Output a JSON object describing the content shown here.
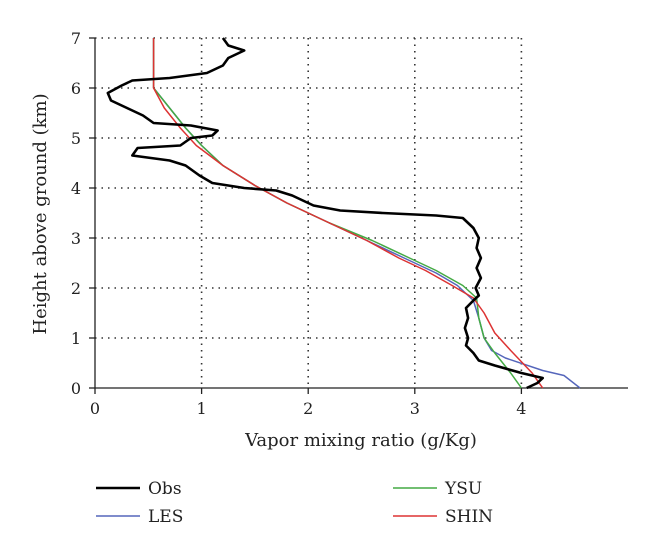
{
  "chart_data": {
    "type": "line",
    "title": "",
    "xlabel": "Vapor mixing ratio (g/Kg)",
    "ylabel": "Height above ground (km)",
    "xlim": [
      0,
      5
    ],
    "ylim": [
      0,
      7
    ],
    "xticks": [
      0,
      1,
      2,
      3,
      4
    ],
    "yticks": [
      0,
      1,
      2,
      3,
      4,
      5,
      6,
      7
    ],
    "grid": true,
    "legend_position": "bottom",
    "series": [
      {
        "name": "Obs",
        "color": "#000000",
        "points": [
          [
            4.05,
            0.0
          ],
          [
            4.15,
            0.1
          ],
          [
            4.2,
            0.2
          ],
          [
            4.0,
            0.3
          ],
          [
            3.75,
            0.45
          ],
          [
            3.6,
            0.55
          ],
          [
            3.55,
            0.7
          ],
          [
            3.48,
            0.85
          ],
          [
            3.5,
            1.0
          ],
          [
            3.47,
            1.2
          ],
          [
            3.5,
            1.4
          ],
          [
            3.48,
            1.6
          ],
          [
            3.55,
            1.75
          ],
          [
            3.6,
            1.85
          ],
          [
            3.57,
            2.0
          ],
          [
            3.62,
            2.2
          ],
          [
            3.58,
            2.4
          ],
          [
            3.62,
            2.6
          ],
          [
            3.58,
            2.8
          ],
          [
            3.6,
            3.0
          ],
          [
            3.55,
            3.2
          ],
          [
            3.45,
            3.4
          ],
          [
            3.2,
            3.45
          ],
          [
            2.7,
            3.5
          ],
          [
            2.3,
            3.55
          ],
          [
            2.05,
            3.65
          ],
          [
            1.85,
            3.85
          ],
          [
            1.7,
            3.95
          ],
          [
            1.4,
            4.0
          ],
          [
            1.1,
            4.1
          ],
          [
            0.98,
            4.25
          ],
          [
            0.85,
            4.45
          ],
          [
            0.7,
            4.55
          ],
          [
            0.35,
            4.65
          ],
          [
            0.4,
            4.8
          ],
          [
            0.8,
            4.85
          ],
          [
            0.9,
            5.0
          ],
          [
            1.1,
            5.05
          ],
          [
            1.15,
            5.15
          ],
          [
            0.9,
            5.25
          ],
          [
            0.55,
            5.3
          ],
          [
            0.45,
            5.45
          ],
          [
            0.3,
            5.6
          ],
          [
            0.15,
            5.75
          ],
          [
            0.12,
            5.9
          ],
          [
            0.25,
            6.05
          ],
          [
            0.35,
            6.15
          ],
          [
            0.7,
            6.2
          ],
          [
            1.05,
            6.3
          ],
          [
            1.2,
            6.45
          ],
          [
            1.25,
            6.6
          ],
          [
            1.4,
            6.75
          ],
          [
            1.25,
            6.85
          ],
          [
            1.2,
            7.0
          ]
        ]
      },
      {
        "name": "LES",
        "color": "#5566bb",
        "points": [
          [
            4.55,
            0.0
          ],
          [
            4.4,
            0.25
          ],
          [
            4.2,
            0.35
          ],
          [
            3.85,
            0.6
          ],
          [
            3.72,
            0.75
          ],
          [
            3.65,
            1.0
          ],
          [
            3.6,
            1.4
          ],
          [
            3.55,
            1.75
          ],
          [
            3.4,
            2.05
          ],
          [
            3.2,
            2.3
          ],
          [
            2.9,
            2.6
          ],
          [
            2.6,
            2.9
          ],
          [
            2.2,
            3.3
          ],
          [
            1.8,
            3.7
          ],
          [
            1.5,
            4.05
          ],
          [
            1.2,
            4.45
          ],
          [
            1.0,
            4.85
          ],
          [
            0.85,
            5.2
          ],
          [
            0.7,
            5.6
          ],
          [
            0.55,
            6.0
          ],
          [
            0.55,
            6.5
          ],
          [
            0.55,
            7.0
          ]
        ]
      },
      {
        "name": "YSU",
        "color": "#44aa44",
        "points": [
          [
            4.0,
            0.0
          ],
          [
            3.9,
            0.3
          ],
          [
            3.75,
            0.7
          ],
          [
            3.65,
            1.0
          ],
          [
            3.6,
            1.4
          ],
          [
            3.58,
            1.8
          ],
          [
            3.45,
            2.05
          ],
          [
            3.2,
            2.35
          ],
          [
            2.95,
            2.6
          ],
          [
            2.6,
            2.95
          ],
          [
            2.2,
            3.3
          ],
          [
            1.8,
            3.7
          ],
          [
            1.5,
            4.05
          ],
          [
            1.2,
            4.45
          ],
          [
            1.0,
            4.85
          ],
          [
            0.85,
            5.2
          ],
          [
            0.7,
            5.6
          ],
          [
            0.55,
            6.0
          ],
          [
            0.55,
            6.5
          ],
          [
            0.55,
            7.0
          ]
        ]
      },
      {
        "name": "SHIN",
        "color": "#dd3333",
        "points": [
          [
            4.2,
            0.0
          ],
          [
            4.1,
            0.3
          ],
          [
            3.9,
            0.75
          ],
          [
            3.75,
            1.1
          ],
          [
            3.65,
            1.5
          ],
          [
            3.55,
            1.8
          ],
          [
            3.35,
            2.05
          ],
          [
            3.1,
            2.35
          ],
          [
            2.85,
            2.6
          ],
          [
            2.55,
            2.95
          ],
          [
            2.2,
            3.3
          ],
          [
            1.8,
            3.7
          ],
          [
            1.5,
            4.05
          ],
          [
            1.2,
            4.45
          ],
          [
            0.95,
            4.85
          ],
          [
            0.8,
            5.2
          ],
          [
            0.65,
            5.6
          ],
          [
            0.55,
            6.0
          ],
          [
            0.55,
            6.5
          ],
          [
            0.55,
            7.0
          ]
        ]
      }
    ]
  },
  "colors": {
    "axis": "#222222",
    "grid": "#333333"
  }
}
